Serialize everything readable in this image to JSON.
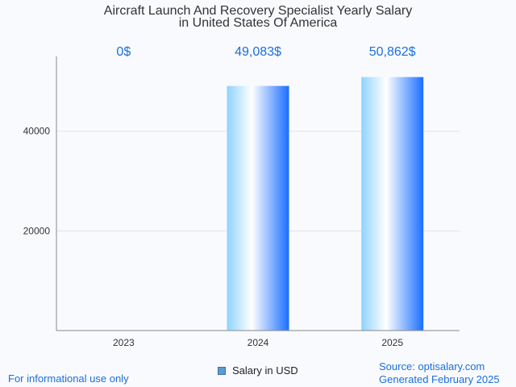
{
  "chart_data": {
    "type": "bar",
    "title_line1": "Aircraft Launch And Recovery Specialist Yearly Salary",
    "title_line2": "in United States Of America",
    "categories": [
      "2023",
      "2024",
      "2025"
    ],
    "values": [
      0,
      49083,
      50862
    ],
    "value_labels": [
      "0$",
      "49,083$",
      "50,862$"
    ],
    "series": [
      {
        "name": "Salary in USD",
        "values": [
          0,
          49083,
          50862
        ]
      }
    ],
    "yticks": [
      20000,
      40000
    ],
    "ylim": [
      0,
      55000
    ],
    "grid": true,
    "legend_position": "bottom-center"
  },
  "footer": {
    "disclaimer": "For informational use only",
    "source": "Source: optisalary.com",
    "generated": "Generated February 2025"
  },
  "colors": {
    "bar_light": "#ffffff",
    "bar_mid": "#8fd3ff",
    "bar_dark": "#1a6fff",
    "label": "#1a6fd8"
  }
}
